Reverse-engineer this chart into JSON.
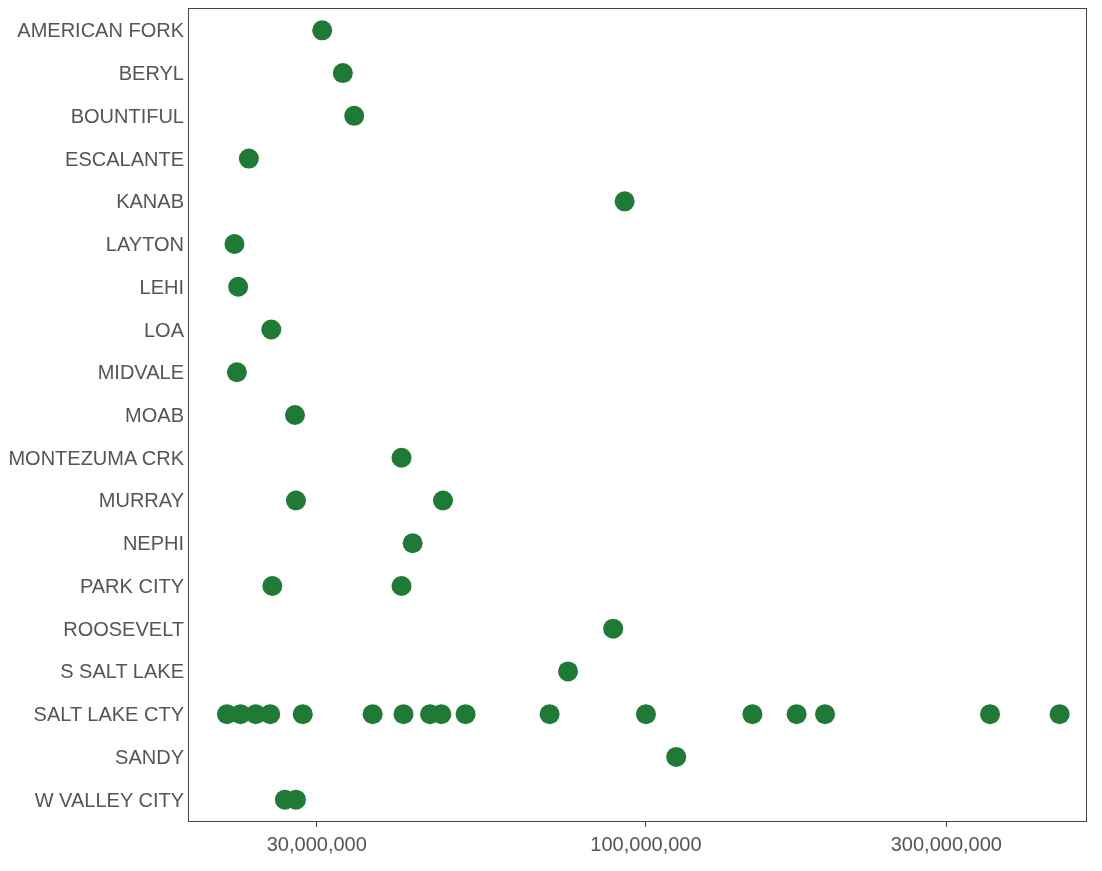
{
  "chart_data": {
    "type": "scatter",
    "orientation": "horizontal",
    "log": "x",
    "marker": "circle",
    "categories": [
      "AMERICAN FORK",
      "BERYL",
      "BOUNTIFUL",
      "ESCALANTE",
      "KANAB",
      "LAYTON",
      "LEHI",
      "LOA",
      "MIDVALE",
      "MOAB",
      "MONTEZUMA CRK",
      "MURRAY",
      "NEPHI",
      "PARK CITY",
      "ROOSEVELT",
      "S SALT LAKE",
      "SALT LAKE CTY",
      "SANDY",
      "W VALLEY CITY"
    ],
    "xlim": [
      18800000,
      500000000
    ],
    "xticks": [
      {
        "value": 30000000,
        "label": "30,000,000"
      },
      {
        "value": 100000000,
        "label": "100,000,000"
      },
      {
        "value": 300000000,
        "label": "300,000,000"
      }
    ],
    "series": [
      {
        "color": "#1f7a35",
        "values": [
          30600000,
          33000000,
          34400000,
          23400000,
          92500000,
          22200000,
          22500000,
          25400000,
          22400000,
          27700000,
          40900000,
          27800000,
          42600000,
          25500000,
          88700000,
          75200000,
          21600000,
          111700000,
          26700000
        ]
      },
      {
        "color": "#1f7a35",
        "values": [
          null,
          null,
          null,
          null,
          null,
          null,
          null,
          null,
          null,
          null,
          null,
          47600000,
          null,
          40900000,
          null,
          null,
          22700000,
          null,
          27800000
        ]
      },
      {
        "color": "#1f7a35",
        "values": [
          null,
          null,
          null,
          null,
          null,
          null,
          null,
          null,
          null,
          null,
          null,
          null,
          null,
          null,
          null,
          null,
          24000000,
          null,
          null
        ]
      },
      {
        "color": "#1f7a35",
        "values": [
          null,
          null,
          null,
          null,
          null,
          null,
          null,
          null,
          null,
          null,
          null,
          null,
          null,
          null,
          null,
          null,
          25300000,
          null,
          null
        ]
      },
      {
        "color": "#1f7a35",
        "values": [
          null,
          null,
          null,
          null,
          null,
          null,
          null,
          null,
          null,
          null,
          null,
          null,
          null,
          null,
          null,
          null,
          28500000,
          null,
          null
        ]
      },
      {
        "color": "#1f7a35",
        "values": [
          null,
          null,
          null,
          null,
          null,
          null,
          null,
          null,
          null,
          null,
          null,
          null,
          null,
          null,
          null,
          null,
          36800000,
          null,
          null
        ]
      },
      {
        "color": "#1f7a35",
        "values": [
          null,
          null,
          null,
          null,
          null,
          null,
          null,
          null,
          null,
          null,
          null,
          null,
          null,
          null,
          null,
          null,
          41200000,
          null,
          null
        ]
      },
      {
        "color": "#1f7a35",
        "values": [
          null,
          null,
          null,
          null,
          null,
          null,
          null,
          null,
          null,
          null,
          null,
          null,
          null,
          null,
          null,
          null,
          45400000,
          null,
          null
        ]
      },
      {
        "color": "#1f7a35",
        "values": [
          null,
          null,
          null,
          null,
          null,
          null,
          null,
          null,
          null,
          null,
          null,
          null,
          null,
          null,
          null,
          null,
          47300000,
          null,
          null
        ]
      },
      {
        "color": "#1f7a35",
        "values": [
          null,
          null,
          null,
          null,
          null,
          null,
          null,
          null,
          null,
          null,
          null,
          null,
          null,
          null,
          null,
          null,
          51700000,
          null,
          null
        ]
      },
      {
        "color": "#1f7a35",
        "values": [
          null,
          null,
          null,
          null,
          null,
          null,
          null,
          null,
          null,
          null,
          null,
          null,
          null,
          null,
          null,
          null,
          70300000,
          null,
          null
        ]
      },
      {
        "color": "#1f7a35",
        "values": [
          null,
          null,
          null,
          null,
          null,
          null,
          null,
          null,
          null,
          null,
          null,
          null,
          null,
          null,
          null,
          null,
          100000000,
          null,
          null
        ]
      },
      {
        "color": "#1f7a35",
        "values": [
          null,
          null,
          null,
          null,
          null,
          null,
          null,
          null,
          null,
          null,
          null,
          null,
          null,
          null,
          null,
          null,
          147600000,
          null,
          null
        ]
      },
      {
        "color": "#1f7a35",
        "values": [
          null,
          null,
          null,
          null,
          null,
          null,
          null,
          null,
          null,
          null,
          null,
          null,
          null,
          null,
          null,
          null,
          173500000,
          null,
          null
        ]
      },
      {
        "color": "#1f7a35",
        "values": [
          null,
          null,
          null,
          null,
          null,
          null,
          null,
          null,
          null,
          null,
          null,
          null,
          null,
          null,
          null,
          null,
          192500000,
          null,
          null
        ]
      },
      {
        "color": "#1f7a35",
        "values": [
          null,
          null,
          null,
          null,
          null,
          null,
          null,
          null,
          null,
          null,
          null,
          null,
          null,
          null,
          null,
          null,
          352000000,
          null,
          null
        ]
      },
      {
        "color": "#1f7a35",
        "values": [
          null,
          null,
          null,
          null,
          null,
          null,
          null,
          null,
          null,
          null,
          null,
          null,
          null,
          null,
          null,
          null,
          454000000,
          null,
          null
        ]
      }
    ]
  }
}
